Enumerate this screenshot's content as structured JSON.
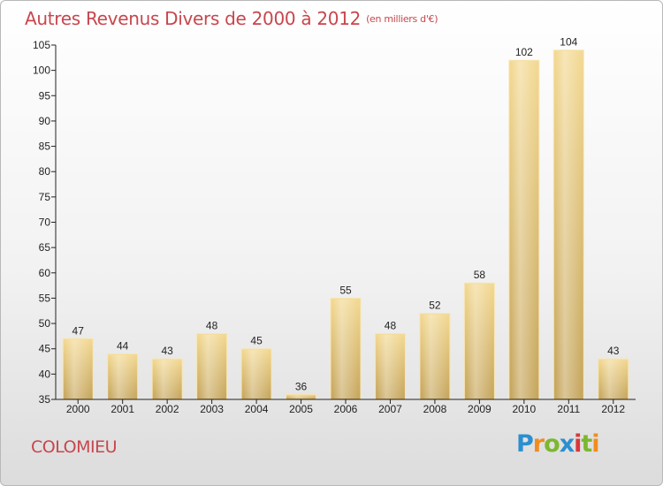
{
  "chart_data": {
    "type": "bar",
    "title": "Autres Revenus Divers de 2000 à 2012",
    "subtitle": "(en milliers d'€)",
    "categories": [
      "2000",
      "2001",
      "2002",
      "2003",
      "2004",
      "2005",
      "2006",
      "2007",
      "2008",
      "2009",
      "2010",
      "2011",
      "2012"
    ],
    "values": [
      47,
      44,
      43,
      48,
      45,
      36,
      55,
      48,
      52,
      58,
      102,
      104,
      43
    ],
    "ylim": [
      35,
      105
    ],
    "yticks": [
      35,
      40,
      45,
      50,
      55,
      60,
      65,
      70,
      75,
      80,
      85,
      90,
      95,
      100,
      105
    ],
    "grid": false,
    "bar_color": "#e8c97a"
  },
  "commune": "COLOMIEU",
  "brand": {
    "letters": [
      "P",
      "r",
      "o",
      "x",
      "i",
      "t",
      "i"
    ],
    "colors": [
      "#2b8fd0",
      "#f28c1e",
      "#7cb82f",
      "#2b8fd0",
      "#d8373a",
      "#7cb82f",
      "#f28c1e"
    ]
  },
  "colors": {
    "accent": "#c8464d"
  }
}
